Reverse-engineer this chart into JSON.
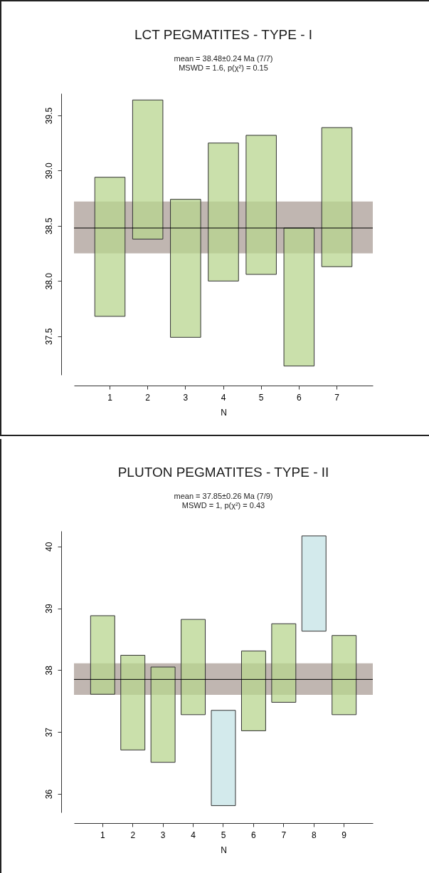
{
  "chart_data": [
    {
      "type": "bar",
      "title": "LCT PEGMATITES - TYPE - I",
      "subtitle": "mean = 38.48±0.24 Ma (7/7)\nMSWD = 1.6, p(χ²) = 0.15",
      "xlabel": "N",
      "categories": [
        "1",
        "2",
        "3",
        "4",
        "5",
        "6",
        "7"
      ],
      "base": [
        37.68,
        38.38,
        37.49,
        38.0,
        38.06,
        37.23,
        38.13
      ],
      "values": [
        1.26,
        1.26,
        1.25,
        1.25,
        1.26,
        1.25,
        1.26
      ],
      "colors": [
        "#b8d68f",
        "#b8d68f",
        "#b8d68f",
        "#b8d68f",
        "#b8d68f",
        "#b8d68f",
        "#b8d68f"
      ],
      "ylim": [
        37.15,
        39.7
      ],
      "yticks": [
        37.5,
        {
          "value": 38,
          "label": "38.0"
        },
        38.5,
        {
          "value": 39,
          "label": "39.0"
        },
        39.5
      ],
      "bands": [
        {
          "axis": "y",
          "from": 38.25,
          "to": 38.72,
          "color": "#c0b6b1"
        }
      ],
      "ref_lines": [
        {
          "axis": "y",
          "value": 38.48,
          "color": "#000000"
        }
      ]
    },
    {
      "type": "bar",
      "title": "PLUTON PEGMATITES - TYPE - II",
      "subtitle": "mean = 37.85±0.26 Ma (7/9)\nMSWD = 1, p(χ²) = 0.43",
      "xlabel": "N",
      "categories": [
        "1",
        "2",
        "3",
        "4",
        "5",
        "6",
        "7",
        "8",
        "9"
      ],
      "base": [
        37.61,
        36.71,
        36.51,
        37.28,
        35.81,
        37.02,
        37.48,
        38.63,
        37.28
      ],
      "values": [
        1.27,
        1.53,
        1.54,
        1.54,
        1.54,
        1.29,
        1.27,
        1.54,
        1.28
      ],
      "colors": [
        "#b8d68f",
        "#b8d68f",
        "#b8d68f",
        "#b8d68f",
        "#c4e3e5",
        "#b8d68f",
        "#b8d68f",
        "#c4e3e5",
        "#b8d68f"
      ],
      "ylim": [
        35.7,
        40.25
      ],
      "yticks": [
        36,
        37,
        38,
        39,
        40
      ],
      "bands": [
        {
          "axis": "y",
          "from": 37.6,
          "to": 38.11,
          "color": "#c0b6b1"
        }
      ],
      "ref_lines": [
        {
          "axis": "y",
          "value": 37.85,
          "color": "#000000"
        }
      ]
    }
  ]
}
